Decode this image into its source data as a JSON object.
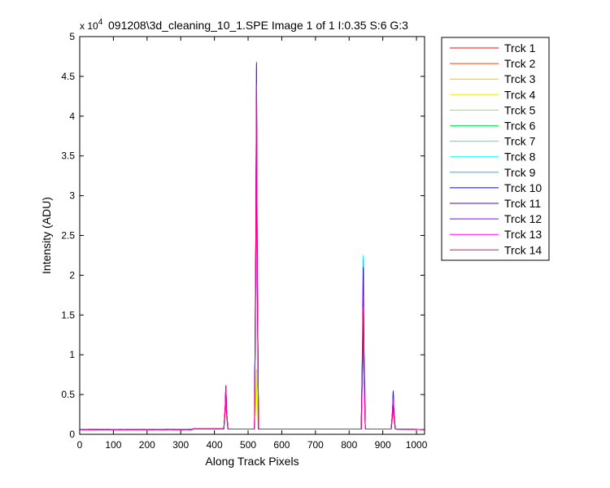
{
  "chart_data": {
    "type": "line",
    "title": "091208\\3d_cleaning_10_1.SPE  Image 1 of 1  I:0.35  S:6  G:3",
    "exponent_label": "x 10",
    "exponent_power": "4",
    "xlabel": "Along Track Pixels",
    "ylabel": "Intensity (ADU)",
    "xlim": [
      0,
      1024
    ],
    "ylim": [
      0,
      50000
    ],
    "x_ticks": [
      0,
      100,
      200,
      300,
      400,
      500,
      600,
      700,
      800,
      900,
      1000
    ],
    "y_ticks": [
      0,
      5000,
      10000,
      15000,
      20000,
      25000,
      30000,
      35000,
      40000,
      45000,
      50000
    ],
    "y_tick_labels": [
      "0",
      "0.5",
      "1",
      "1.5",
      "2",
      "2.5",
      "3",
      "3.5",
      "4",
      "4.5",
      "5"
    ],
    "grid": false,
    "legend_position": "outside-right",
    "baseline": 600,
    "series": [
      {
        "name": "Trck 1",
        "color": "#ff0000",
        "peaks": [
          {
            "x": 434,
            "y": 5200
          },
          {
            "x": 525,
            "y": 42000
          },
          {
            "x": 842,
            "y": 18000
          },
          {
            "x": 931,
            "y": 4500
          }
        ]
      },
      {
        "name": "Trck 2",
        "color": "#ff4000",
        "peaks": [
          {
            "x": 434,
            "y": 5400
          },
          {
            "x": 525,
            "y": 40000
          },
          {
            "x": 842,
            "y": 19000
          },
          {
            "x": 931,
            "y": 4600
          }
        ]
      },
      {
        "name": "Trck 3",
        "color": "#ffbf00",
        "peaks": [
          {
            "x": 434,
            "y": 5300
          },
          {
            "x": 525,
            "y": 8200
          },
          {
            "x": 842,
            "y": 17000
          },
          {
            "x": 931,
            "y": 4700
          }
        ]
      },
      {
        "name": "Trck 4",
        "color": "#e6f200",
        "peaks": [
          {
            "x": 434,
            "y": 5100
          },
          {
            "x": 525,
            "y": 7800
          },
          {
            "x": 842,
            "y": 16500
          },
          {
            "x": 931,
            "y": 4800
          }
        ]
      },
      {
        "name": "Trck 5",
        "color": "#80ff00",
        "peaks": [
          {
            "x": 434,
            "y": 5500
          },
          {
            "x": 525,
            "y": 41000
          },
          {
            "x": 842,
            "y": 20000
          },
          {
            "x": 931,
            "y": 4900
          }
        ]
      },
      {
        "name": "Trck 6",
        "color": "#00ff40",
        "peaks": [
          {
            "x": 434,
            "y": 5600
          },
          {
            "x": 525,
            "y": 42500
          },
          {
            "x": 842,
            "y": 21000
          },
          {
            "x": 931,
            "y": 5000
          }
        ]
      },
      {
        "name": "Trck 7",
        "color": "#00ffbf",
        "peaks": [
          {
            "x": 434,
            "y": 5700
          },
          {
            "x": 525,
            "y": 43000
          },
          {
            "x": 842,
            "y": 21500
          },
          {
            "x": 931,
            "y": 5100
          }
        ]
      },
      {
        "name": "Trck 8",
        "color": "#00ffff",
        "peaks": [
          {
            "x": 434,
            "y": 5800
          },
          {
            "x": 525,
            "y": 44000
          },
          {
            "x": 842,
            "y": 22500
          },
          {
            "x": 931,
            "y": 5200
          }
        ]
      },
      {
        "name": "Trck 9",
        "color": "#00bfff",
        "peaks": [
          {
            "x": 434,
            "y": 5900
          },
          {
            "x": 525,
            "y": 44500
          },
          {
            "x": 842,
            "y": 22000
          },
          {
            "x": 931,
            "y": 5300
          }
        ]
      },
      {
        "name": "Trck 10",
        "color": "#0000ff",
        "peaks": [
          {
            "x": 434,
            "y": 6000
          },
          {
            "x": 525,
            "y": 42000
          },
          {
            "x": 842,
            "y": 21000
          },
          {
            "x": 931,
            "y": 5500
          }
        ]
      },
      {
        "name": "Trck 11",
        "color": "#4000ff",
        "peaks": [
          {
            "x": 434,
            "y": 6100
          },
          {
            "x": 525,
            "y": 46500
          },
          {
            "x": 842,
            "y": 19500
          },
          {
            "x": 931,
            "y": 5400
          }
        ]
      },
      {
        "name": "Trck 12",
        "color": "#8000ff",
        "peaks": [
          {
            "x": 434,
            "y": 6150
          },
          {
            "x": 525,
            "y": 46800
          },
          {
            "x": 842,
            "y": 17500
          },
          {
            "x": 931,
            "y": 5000
          }
        ]
      },
      {
        "name": "Trck 13",
        "color": "#ff00ff",
        "peaks": [
          {
            "x": 434,
            "y": 6200
          },
          {
            "x": 525,
            "y": 44000
          },
          {
            "x": 842,
            "y": 16000
          },
          {
            "x": 931,
            "y": 4600
          }
        ]
      },
      {
        "name": "Trck 14",
        "color": "#ff0080",
        "peaks": [
          {
            "x": 434,
            "y": 6000
          },
          {
            "x": 525,
            "y": 43500
          },
          {
            "x": 842,
            "y": 15500
          },
          {
            "x": 931,
            "y": 4500
          }
        ]
      }
    ]
  }
}
